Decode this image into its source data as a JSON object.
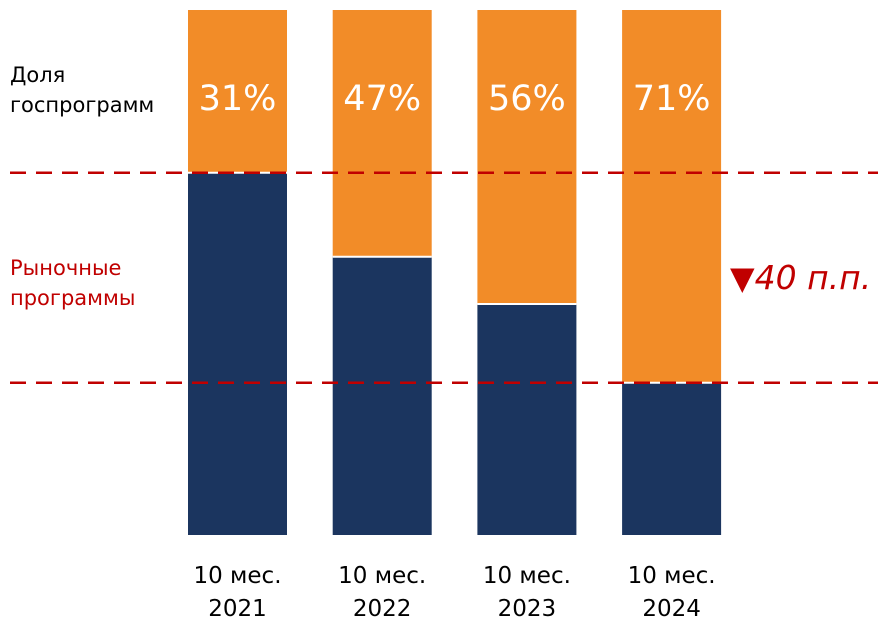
{
  "chart_data": {
    "type": "bar",
    "stacked": true,
    "normalized_100": true,
    "categories": [
      "10 мес.\n2021",
      "10 мес.\n2022",
      "10 мес.\n2023",
      "10 мес.\n2024"
    ],
    "series": [
      {
        "values": [
          69,
          53,
          44,
          29
        ],
        "color": "#1b355f"
      },
      {
        "values": [
          31,
          47,
          56,
          71
        ],
        "color": "#f28c28",
        "data_labels": [
          "31%",
          "47%",
          "56%",
          "71%"
        ]
      }
    ],
    "ylim": [
      0,
      100
    ],
    "grid": false,
    "reference_lines": [
      69,
      29
    ],
    "reference_line_color": "#c00000"
  },
  "annotations": {
    "gov_label": "Доля\nгоспрограмм",
    "market_label": "Рыночные\nпрограммы",
    "change_arrow": "▼",
    "change_text": "40 п.п.",
    "change_color": "#c00000"
  }
}
